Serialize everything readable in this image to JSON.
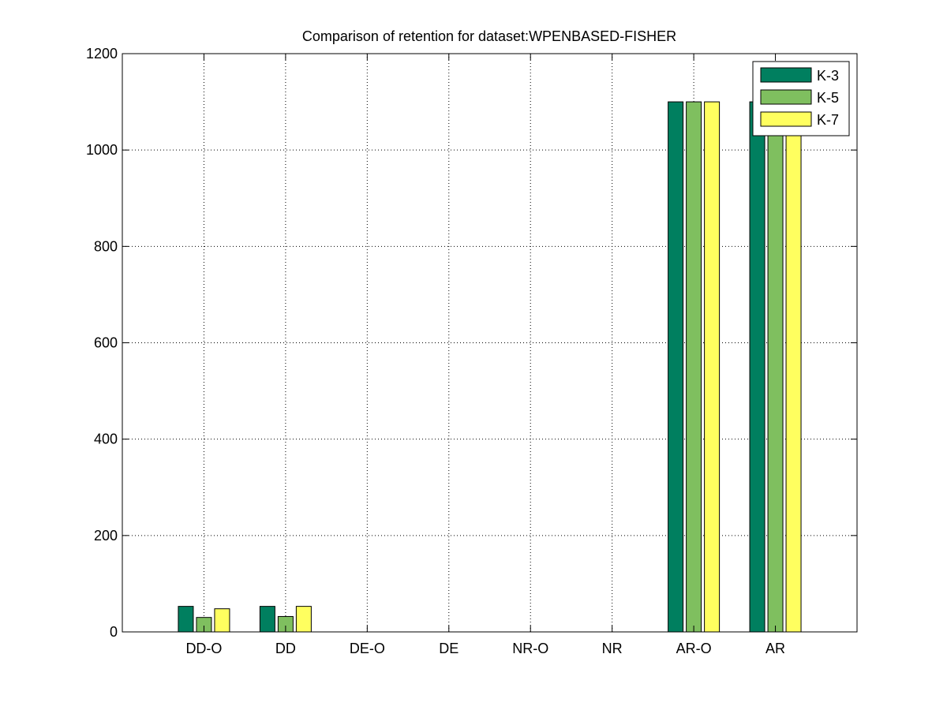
{
  "chart_data": {
    "type": "bar",
    "title": "Comparison of retention for dataset:WPENBASED-FISHER",
    "xlabel": "",
    "ylabel": "",
    "categories": [
      "DD-O",
      "DD",
      "DE-O",
      "DE",
      "NR-O",
      "NR",
      "AR-O",
      "AR"
    ],
    "series": [
      {
        "name": "K-3",
        "color": "#007f5f",
        "values": [
          53,
          53,
          0,
          0,
          0,
          0,
          1100,
          1100
        ]
      },
      {
        "name": "K-5",
        "color": "#7fbf5f",
        "values": [
          30,
          32,
          0,
          0,
          0,
          0,
          1100,
          1100
        ]
      },
      {
        "name": "K-7",
        "color": "#ffff5f",
        "values": [
          48,
          53,
          0,
          0,
          0,
          0,
          1100,
          1100
        ]
      }
    ],
    "ylim": [
      0,
      1200
    ],
    "yticks": [
      0,
      200,
      400,
      600,
      800,
      1000,
      1200
    ],
    "grid": true,
    "legend_position": "top-right"
  }
}
